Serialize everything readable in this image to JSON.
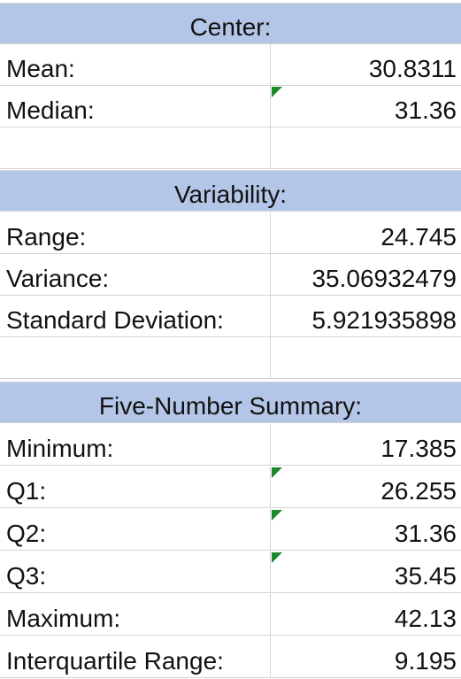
{
  "center": {
    "title": "Center:",
    "rows": [
      {
        "label": "Mean:",
        "value": "30.8311"
      },
      {
        "label": "Median:",
        "value": "31.36"
      }
    ]
  },
  "variability": {
    "title": "Variability:",
    "rows": [
      {
        "label": "Range:",
        "value": "24.745"
      },
      {
        "label": "Variance:",
        "value": "35.06932479"
      },
      {
        "label": "Standard Deviation:",
        "value": "5.921935898"
      }
    ]
  },
  "five_number": {
    "title": "Five-Number Summary:",
    "rows": [
      {
        "label": "Minimum:",
        "value": "17.385"
      },
      {
        "label": "Q1:",
        "value": "26.255"
      },
      {
        "label": "Q2:",
        "value": "31.36"
      },
      {
        "label": "Q3:",
        "value": "35.45"
      },
      {
        "label": "Maximum:",
        "value": "42.13"
      },
      {
        "label": "Interquartile Range:",
        "value": "9.195"
      }
    ]
  },
  "colors": {
    "header_fill": "#b4c6e7",
    "gridline": "#d4d4d4",
    "error_indicator": "#1b8a2a"
  }
}
